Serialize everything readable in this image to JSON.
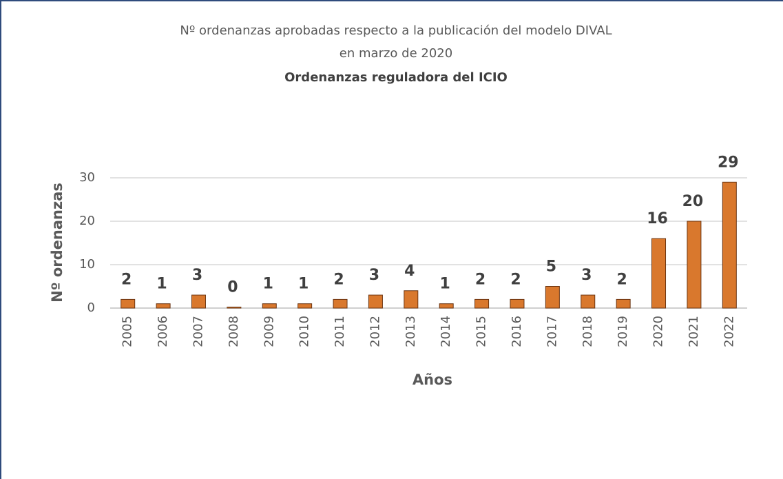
{
  "chart_data": {
    "type": "bar",
    "title": [
      "Nº ordenanzas aprobadas respecto a la publicación del modelo DIVAL",
      "en marzo de 2020"
    ],
    "subtitle": "Ordenanzas reguladora del ICIO",
    "x_label": "Años",
    "y_label": "Nº ordenanzas",
    "categories": [
      "2005",
      "2006",
      "2007",
      "2008",
      "2009",
      "2010",
      "2011",
      "2012",
      "2013",
      "2014",
      "2015",
      "2016",
      "2017",
      "2018",
      "2019",
      "2020",
      "2021",
      "2022"
    ],
    "values": [
      2,
      1,
      3,
      0,
      1,
      1,
      2,
      3,
      4,
      1,
      2,
      2,
      5,
      3,
      2,
      16,
      20,
      29
    ],
    "color": "#d9782d",
    "ylim": [
      0,
      30
    ],
    "yticks": [
      0,
      10,
      20,
      30
    ],
    "grid": true
  }
}
